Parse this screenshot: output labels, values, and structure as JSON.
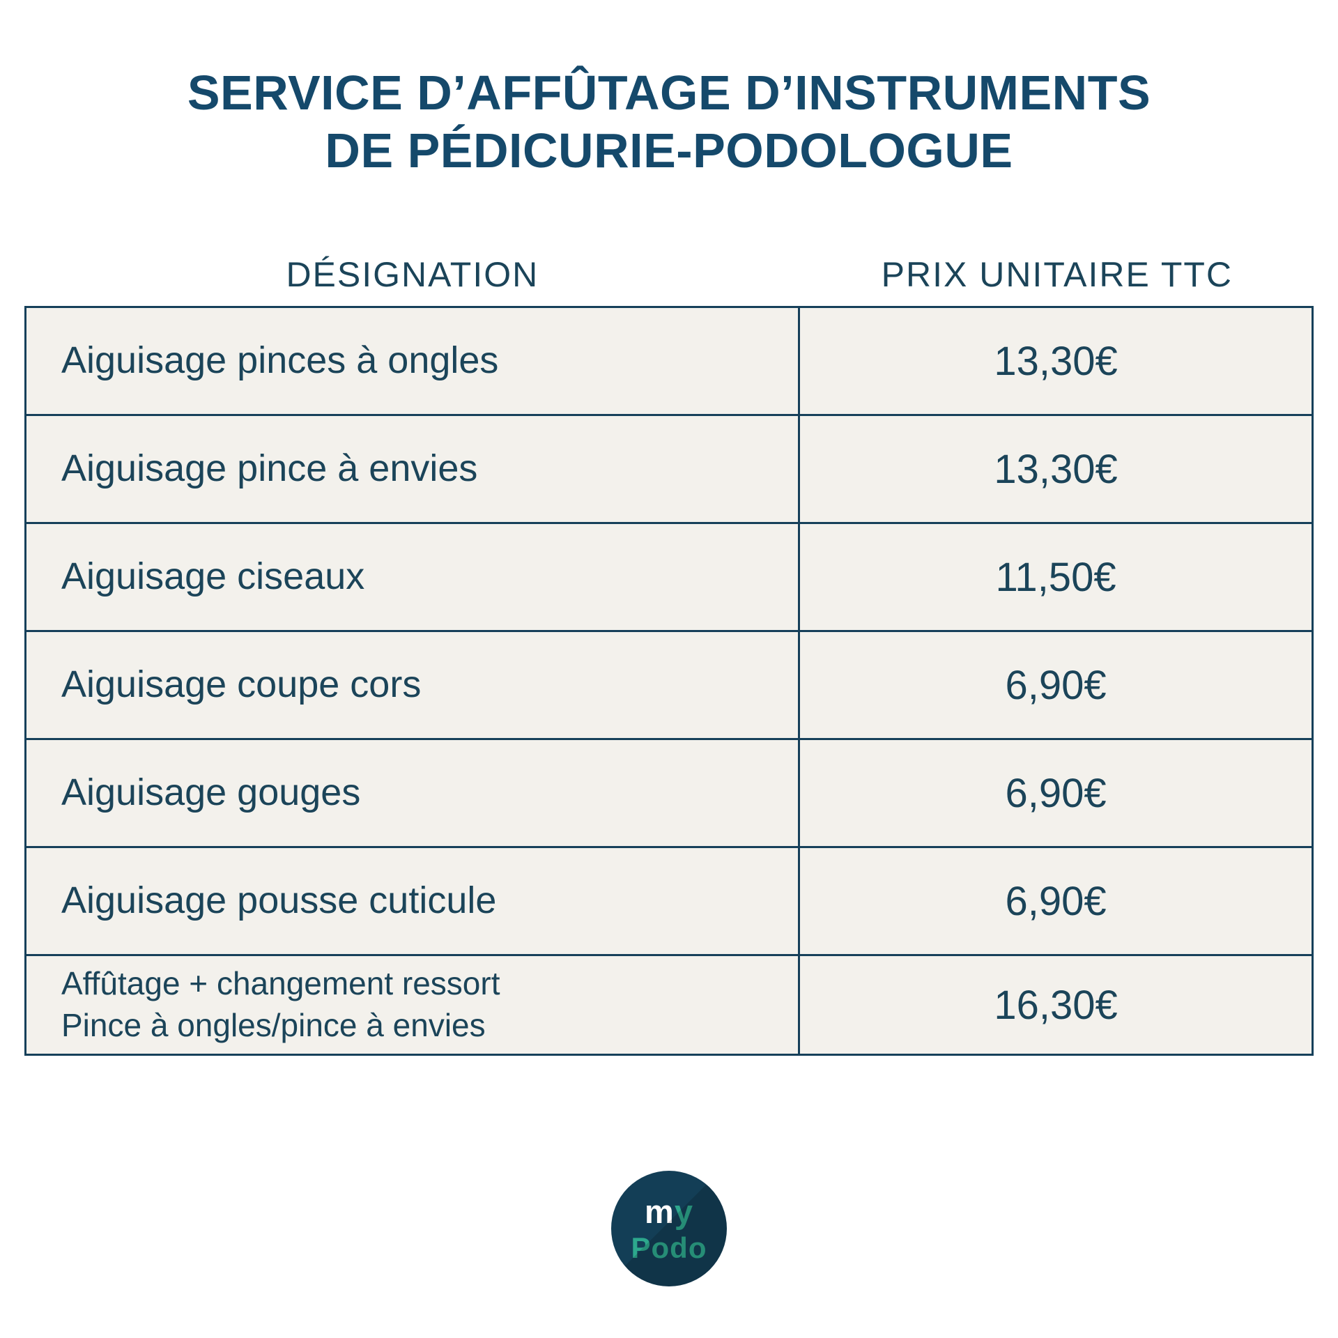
{
  "page": {
    "title_lines": [
      "SERVICE D’AFFÛTAGE D’INSTRUMENTS",
      "DE PÉDICURIE-PODOLOGUE"
    ]
  },
  "colors": {
    "title": "#15496b",
    "text": "#1b4459",
    "table_border": "#16405a",
    "cell_background": "#f3f1ec",
    "page_background": "#ffffff",
    "logo_circle": "#133e56",
    "logo_teal": "#2da88d",
    "logo_white": "#ffffff"
  },
  "table": {
    "columns": [
      "DÉSIGNATION",
      "PRIX UNITAIRE TTC"
    ],
    "rows": [
      {
        "designation": "Aiguisage pinces à ongles",
        "price": "13,30€"
      },
      {
        "designation": "Aiguisage pince à envies",
        "price": "13,30€"
      },
      {
        "designation": "Aiguisage ciseaux",
        "price": "11,50€"
      },
      {
        "designation": "Aiguisage coupe cors",
        "price": "6,90€"
      },
      {
        "designation": "Aiguisage gouges",
        "price": "6,90€"
      },
      {
        "designation": "Aiguisage pousse cuticule",
        "price": "6,90€"
      },
      {
        "designation": "Affûtage + changement ressort\nPince à ongles/pince à envies",
        "price": "16,30€"
      }
    ]
  },
  "logo": {
    "part_white": "m",
    "part_teal": "y",
    "line2": "Podo"
  }
}
